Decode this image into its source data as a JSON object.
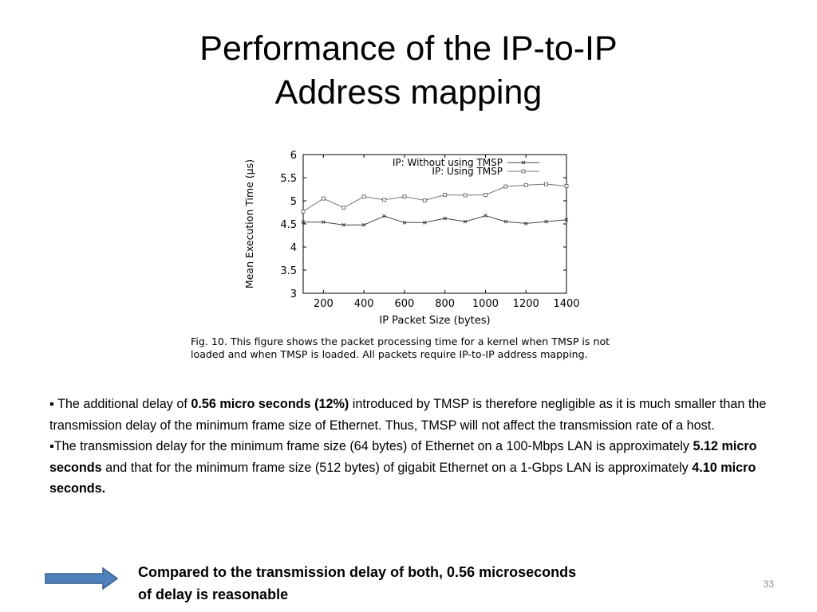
{
  "slide": {
    "title_line1": "Performance of the IP-to-IP",
    "title_line2": "Address mapping",
    "figure_caption": "Fig. 10. This figure shows the packet processing time for a kernel when TMSP is not loaded and when TMSP is loaded. All packets require IP-to-IP address mapping.",
    "bullet1": {
      "marker": "▪",
      "text_before": " The additional delay of ",
      "bold1": "0.56 micro seconds (12%)",
      "text_after": " introduced by TMSP is therefore negligible as it is much smaller than the transmission delay of the minimum frame size of Ethernet. Thus, TMSP will not affect the transmission rate of a host."
    },
    "bullet2": {
      "marker": "▪",
      "text_before": "The transmission delay for the minimum frame size (64 bytes) of Ethernet on a 100-Mbps LAN is approximately ",
      "bold1": "5.12 micro seconds",
      "text_middle": " and that for the minimum frame size (512 bytes) of gigabit Ethernet on a 1-Gbps LAN is approximately ",
      "bold2": "4.10 micro seconds."
    },
    "conclusion_line1": "Compared to the transmission delay of both, 0.56 microseconds",
    "conclusion_line2": "of delay is reasonable",
    "page_number": "33",
    "arrow_color": "#4f81bd"
  },
  "chart_data": {
    "type": "line",
    "xlabel": "IP Packet Size (bytes)",
    "ylabel": "Mean Execution Time (µs)",
    "xlim": [
      100,
      1400
    ],
    "ylim": [
      3,
      6
    ],
    "xticks": [
      200,
      400,
      600,
      800,
      1000,
      1200,
      1400
    ],
    "yticks": [
      3,
      3.5,
      4,
      4.5,
      5,
      5.5,
      6
    ],
    "xtick_labels": [
      "200",
      "400",
      "600",
      "800",
      "1000",
      "1200",
      "1400"
    ],
    "ytick_labels": [
      "3",
      "3.5",
      "4",
      "4.5",
      "5",
      "5.5",
      "6"
    ],
    "legend_position": "top-right",
    "grid": false,
    "x": [
      100,
      200,
      300,
      400,
      500,
      600,
      700,
      800,
      900,
      1000,
      1100,
      1200,
      1300,
      1400
    ],
    "series": [
      {
        "name": "IP: Without using TMSP",
        "marker": "x",
        "values": [
          4.54,
          4.54,
          4.48,
          4.48,
          4.67,
          4.53,
          4.53,
          4.62,
          4.55,
          4.68,
          4.55,
          4.51,
          4.55,
          4.59
        ]
      },
      {
        "name": "IP: Using TMSP",
        "marker": "square",
        "values": [
          4.77,
          5.05,
          4.85,
          5.09,
          5.02,
          5.09,
          5.01,
          5.13,
          5.12,
          5.13,
          5.31,
          5.34,
          5.36,
          5.32
        ]
      }
    ]
  }
}
